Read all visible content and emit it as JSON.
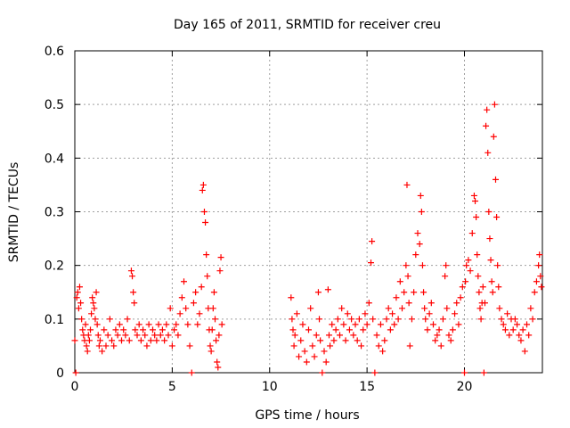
{
  "chart_data": {
    "type": "scatter",
    "title": "Day 165 of 2011, SRMTID for receiver creu",
    "xlabel": "GPS time / hours",
    "ylabel": "SRMTID / TECUs",
    "xlim": [
      0,
      24
    ],
    "ylim": [
      0,
      0.6
    ],
    "xticks": [
      0,
      5,
      10,
      15,
      20
    ],
    "yticks": [
      0,
      0.1,
      0.2,
      0.3,
      0.4,
      0.5,
      0.6
    ],
    "xtick_labels": [
      "0",
      "5",
      "10",
      "15",
      "20"
    ],
    "ytick_labels": [
      "0",
      "0.1",
      "0.2",
      "0.3",
      "0.4",
      "0.5",
      "0.6"
    ],
    "grid": true,
    "marker": "plus",
    "color": "#ff0000",
    "series": [
      {
        "name": "SRMTID",
        "points": [
          [
            0.0,
            0.06
          ],
          [
            0.05,
            0.0
          ],
          [
            0.1,
            0.14
          ],
          [
            0.15,
            0.15
          ],
          [
            0.2,
            0.12
          ],
          [
            0.25,
            0.16
          ],
          [
            0.3,
            0.13
          ],
          [
            0.35,
            0.1
          ],
          [
            0.4,
            0.08
          ],
          [
            0.45,
            0.07
          ],
          [
            0.5,
            0.06
          ],
          [
            0.55,
            0.09
          ],
          [
            0.6,
            0.05
          ],
          [
            0.65,
            0.04
          ],
          [
            0.7,
            0.07
          ],
          [
            0.75,
            0.06
          ],
          [
            0.8,
            0.08
          ],
          [
            0.85,
            0.11
          ],
          [
            0.9,
            0.14
          ],
          [
            0.95,
            0.13
          ],
          [
            1.0,
            0.12
          ],
          [
            1.05,
            0.1
          ],
          [
            1.1,
            0.15
          ],
          [
            1.15,
            0.09
          ],
          [
            1.2,
            0.07
          ],
          [
            1.25,
            0.05
          ],
          [
            1.3,
            0.06
          ],
          [
            1.4,
            0.04
          ],
          [
            1.5,
            0.08
          ],
          [
            1.6,
            0.05
          ],
          [
            1.7,
            0.07
          ],
          [
            1.8,
            0.1
          ],
          [
            1.9,
            0.06
          ],
          [
            2.0,
            0.05
          ],
          [
            2.1,
            0.08
          ],
          [
            2.2,
            0.07
          ],
          [
            2.3,
            0.09
          ],
          [
            2.4,
            0.06
          ],
          [
            2.5,
            0.08
          ],
          [
            2.6,
            0.07
          ],
          [
            2.7,
            0.1
          ],
          [
            2.8,
            0.06
          ],
          [
            2.9,
            0.19
          ],
          [
            2.95,
            0.18
          ],
          [
            3.0,
            0.15
          ],
          [
            3.05,
            0.13
          ],
          [
            3.1,
            0.08
          ],
          [
            3.2,
            0.07
          ],
          [
            3.3,
            0.09
          ],
          [
            3.4,
            0.06
          ],
          [
            3.5,
            0.08
          ],
          [
            3.6,
            0.07
          ],
          [
            3.7,
            0.05
          ],
          [
            3.8,
            0.09
          ],
          [
            3.9,
            0.06
          ],
          [
            4.0,
            0.08
          ],
          [
            4.1,
            0.07
          ],
          [
            4.2,
            0.06
          ],
          [
            4.3,
            0.09
          ],
          [
            4.4,
            0.07
          ],
          [
            4.5,
            0.08
          ],
          [
            4.6,
            0.06
          ],
          [
            4.7,
            0.09
          ],
          [
            4.8,
            0.07
          ],
          [
            4.9,
            0.12
          ],
          [
            5.0,
            0.05
          ],
          [
            5.1,
            0.08
          ],
          [
            5.2,
            0.09
          ],
          [
            5.3,
            0.07
          ],
          [
            5.4,
            0.11
          ],
          [
            5.5,
            0.14
          ],
          [
            5.6,
            0.17
          ],
          [
            5.7,
            0.12
          ],
          [
            5.8,
            0.09
          ],
          [
            5.9,
            0.05
          ],
          [
            6.0,
            0.0
          ],
          [
            6.1,
            0.13
          ],
          [
            6.2,
            0.15
          ],
          [
            6.3,
            0.09
          ],
          [
            6.4,
            0.11
          ],
          [
            6.5,
            0.16
          ],
          [
            6.55,
            0.34
          ],
          [
            6.6,
            0.35
          ],
          [
            6.65,
            0.3
          ],
          [
            6.7,
            0.28
          ],
          [
            6.75,
            0.22
          ],
          [
            6.8,
            0.18
          ],
          [
            6.85,
            0.12
          ],
          [
            6.9,
            0.08
          ],
          [
            6.95,
            0.05
          ],
          [
            7.0,
            0.04
          ],
          [
            7.05,
            0.08
          ],
          [
            7.1,
            0.12
          ],
          [
            7.15,
            0.15
          ],
          [
            7.2,
            0.1
          ],
          [
            7.25,
            0.06
          ],
          [
            7.3,
            0.02
          ],
          [
            7.35,
            0.01
          ],
          [
            7.4,
            0.07
          ],
          [
            7.45,
            0.19
          ],
          [
            7.5,
            0.215
          ],
          [
            7.55,
            0.09
          ],
          [
            11.1,
            0.14
          ],
          [
            11.15,
            0.1
          ],
          [
            11.2,
            0.08
          ],
          [
            11.25,
            0.05
          ],
          [
            11.3,
            0.07
          ],
          [
            11.4,
            0.11
          ],
          [
            11.5,
            0.03
          ],
          [
            11.6,
            0.06
          ],
          [
            11.7,
            0.09
          ],
          [
            11.8,
            0.04
          ],
          [
            11.9,
            0.02
          ],
          [
            12.0,
            0.08
          ],
          [
            12.1,
            0.12
          ],
          [
            12.2,
            0.05
          ],
          [
            12.3,
            0.03
          ],
          [
            12.4,
            0.07
          ],
          [
            12.5,
            0.15
          ],
          [
            12.55,
            0.1
          ],
          [
            12.6,
            0.06
          ],
          [
            12.7,
            0.0
          ],
          [
            12.8,
            0.04
          ],
          [
            12.9,
            0.02
          ],
          [
            13.0,
            0.155
          ],
          [
            13.05,
            0.07
          ],
          [
            13.1,
            0.05
          ],
          [
            13.2,
            0.09
          ],
          [
            13.3,
            0.06
          ],
          [
            13.4,
            0.08
          ],
          [
            13.5,
            0.1
          ],
          [
            13.6,
            0.07
          ],
          [
            13.7,
            0.12
          ],
          [
            13.8,
            0.09
          ],
          [
            13.9,
            0.06
          ],
          [
            14.0,
            0.11
          ],
          [
            14.1,
            0.08
          ],
          [
            14.2,
            0.1
          ],
          [
            14.3,
            0.07
          ],
          [
            14.4,
            0.09
          ],
          [
            14.5,
            0.06
          ],
          [
            14.6,
            0.1
          ],
          [
            14.7,
            0.05
          ],
          [
            14.8,
            0.08
          ],
          [
            14.9,
            0.11
          ],
          [
            15.0,
            0.09
          ],
          [
            15.1,
            0.13
          ],
          [
            15.2,
            0.205
          ],
          [
            15.25,
            0.245
          ],
          [
            15.3,
            0.1
          ],
          [
            15.4,
            0.0
          ],
          [
            15.5,
            0.07
          ],
          [
            15.6,
            0.05
          ],
          [
            15.7,
            0.09
          ],
          [
            15.8,
            0.04
          ],
          [
            15.9,
            0.06
          ],
          [
            16.0,
            0.1
          ],
          [
            16.1,
            0.12
          ],
          [
            16.2,
            0.08
          ],
          [
            16.3,
            0.11
          ],
          [
            16.4,
            0.09
          ],
          [
            16.5,
            0.14
          ],
          [
            16.6,
            0.1
          ],
          [
            16.7,
            0.17
          ],
          [
            16.8,
            0.12
          ],
          [
            16.9,
            0.15
          ],
          [
            17.0,
            0.2
          ],
          [
            17.05,
            0.35
          ],
          [
            17.1,
            0.18
          ],
          [
            17.15,
            0.13
          ],
          [
            17.2,
            0.05
          ],
          [
            17.3,
            0.1
          ],
          [
            17.4,
            0.15
          ],
          [
            17.5,
            0.22
          ],
          [
            17.6,
            0.26
          ],
          [
            17.7,
            0.24
          ],
          [
            17.75,
            0.33
          ],
          [
            17.8,
            0.3
          ],
          [
            17.85,
            0.2
          ],
          [
            17.9,
            0.15
          ],
          [
            17.95,
            0.12
          ],
          [
            18.0,
            0.1
          ],
          [
            18.1,
            0.08
          ],
          [
            18.2,
            0.11
          ],
          [
            18.3,
            0.13
          ],
          [
            18.4,
            0.09
          ],
          [
            18.5,
            0.06
          ],
          [
            18.6,
            0.07
          ],
          [
            18.7,
            0.08
          ],
          [
            18.8,
            0.05
          ],
          [
            18.9,
            0.1
          ],
          [
            19.0,
            0.18
          ],
          [
            19.05,
            0.2
          ],
          [
            19.1,
            0.12
          ],
          [
            19.2,
            0.07
          ],
          [
            19.3,
            0.06
          ],
          [
            19.4,
            0.08
          ],
          [
            19.5,
            0.11
          ],
          [
            19.6,
            0.13
          ],
          [
            19.7,
            0.09
          ],
          [
            19.8,
            0.14
          ],
          [
            19.9,
            0.16
          ],
          [
            20.0,
            0.0
          ],
          [
            20.05,
            0.17
          ],
          [
            20.1,
            0.2
          ],
          [
            20.2,
            0.21
          ],
          [
            20.3,
            0.19
          ],
          [
            20.4,
            0.26
          ],
          [
            20.5,
            0.33
          ],
          [
            20.55,
            0.32
          ],
          [
            20.6,
            0.29
          ],
          [
            20.65,
            0.22
          ],
          [
            20.7,
            0.18
          ],
          [
            20.75,
            0.15
          ],
          [
            20.8,
            0.12
          ],
          [
            20.85,
            0.1
          ],
          [
            20.9,
            0.13
          ],
          [
            20.95,
            0.16
          ],
          [
            21.0,
            0.0
          ],
          [
            21.05,
            0.13
          ],
          [
            21.1,
            0.46
          ],
          [
            21.15,
            0.49
          ],
          [
            21.2,
            0.41
          ],
          [
            21.25,
            0.3
          ],
          [
            21.3,
            0.25
          ],
          [
            21.35,
            0.21
          ],
          [
            21.4,
            0.17
          ],
          [
            21.45,
            0.15
          ],
          [
            21.5,
            0.44
          ],
          [
            21.55,
            0.5
          ],
          [
            21.6,
            0.36
          ],
          [
            21.65,
            0.29
          ],
          [
            21.7,
            0.2
          ],
          [
            21.75,
            0.16
          ],
          [
            21.8,
            0.12
          ],
          [
            21.9,
            0.1
          ],
          [
            22.0,
            0.09
          ],
          [
            22.1,
            0.08
          ],
          [
            22.2,
            0.11
          ],
          [
            22.3,
            0.07
          ],
          [
            22.4,
            0.1
          ],
          [
            22.5,
            0.08
          ],
          [
            22.6,
            0.1
          ],
          [
            22.7,
            0.09
          ],
          [
            22.8,
            0.07
          ],
          [
            22.9,
            0.06
          ],
          [
            23.0,
            0.08
          ],
          [
            23.1,
            0.04
          ],
          [
            23.2,
            0.09
          ],
          [
            23.3,
            0.07
          ],
          [
            23.4,
            0.12
          ],
          [
            23.5,
            0.1
          ],
          [
            23.6,
            0.15
          ],
          [
            23.7,
            0.17
          ],
          [
            23.8,
            0.2
          ],
          [
            23.85,
            0.22
          ],
          [
            23.9,
            0.18
          ],
          [
            23.95,
            0.16
          ]
        ]
      }
    ]
  }
}
